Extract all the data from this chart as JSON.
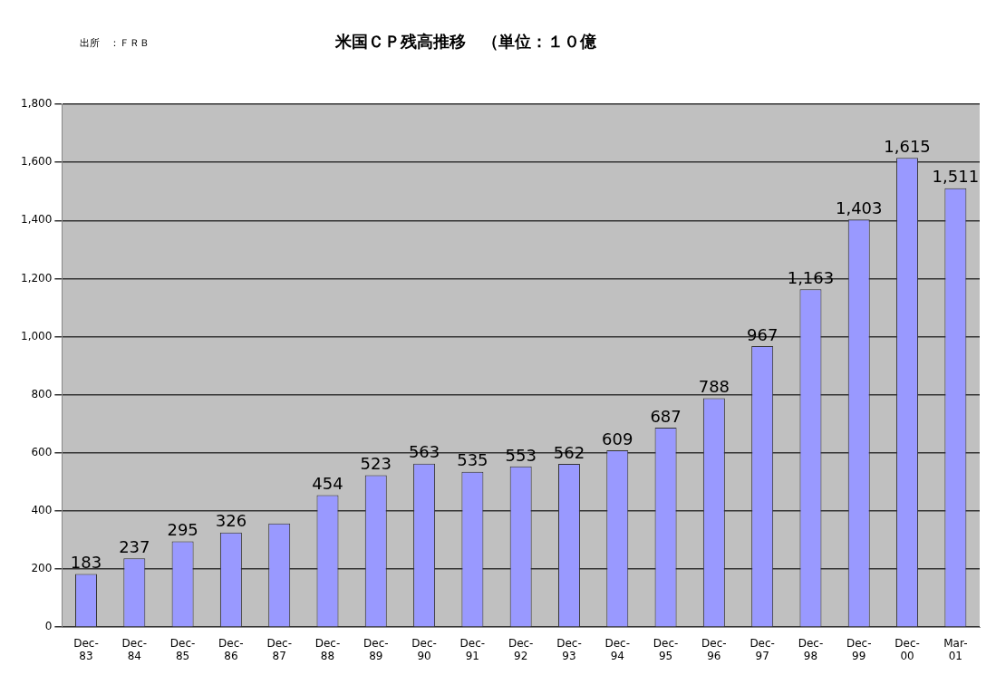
{
  "chart_data": {
    "type": "bar",
    "title": "米国ＣＰ残高推移　（単位：１０億",
    "annotations": [
      "出所　：ＦＲＢ"
    ],
    "categories": [
      "Dec-83",
      "Dec-84",
      "Dec-85",
      "Dec-86",
      "Dec-87",
      "Dec-88",
      "Dec-89",
      "Dec-90",
      "Dec-91",
      "Dec-92",
      "Dec-93",
      "Dec-94",
      "Dec-95",
      "Dec-96",
      "Dec-97",
      "Dec-98",
      "Dec-99",
      "Dec-00",
      "Mar-01"
    ],
    "values": [
      183,
      237,
      295,
      326,
      357,
      454,
      523,
      563,
      535,
      553,
      562,
      609,
      687,
      788,
      967,
      1163,
      1403,
      1615,
      1511
    ],
    "value_labels": [
      "183",
      "237",
      "295",
      "326",
      null,
      "454",
      "523",
      "563",
      "535",
      "553",
      "562",
      "609",
      "687",
      "788",
      "967",
      "1,163",
      "1,403",
      "1,615",
      "1,511"
    ],
    "color": "#9999ff",
    "ylim": [
      0,
      1800
    ],
    "yticks": [
      {
        "value": 0,
        "label": "0"
      },
      {
        "value": 200,
        "label": "200"
      },
      {
        "value": 400,
        "label": "400"
      },
      {
        "value": 600,
        "label": "600"
      },
      {
        "value": 800,
        "label": "800"
      },
      {
        "value": 1000,
        "label": "1,000"
      },
      {
        "value": 1200,
        "label": "1,200"
      },
      {
        "value": 1400,
        "label": "1,400"
      },
      {
        "value": 1600,
        "label": "1,600"
      },
      {
        "value": 1800,
        "label": "1,800"
      }
    ],
    "grid": "y",
    "legend": false
  }
}
